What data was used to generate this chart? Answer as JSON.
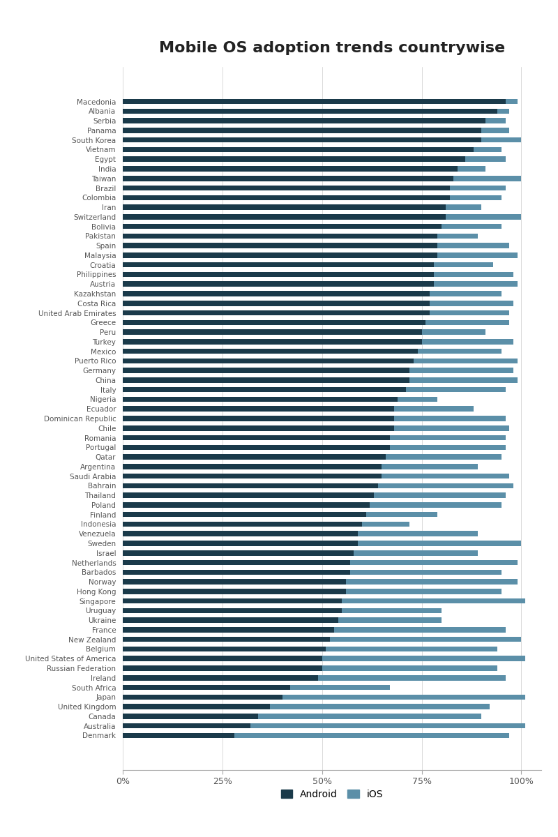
{
  "title": "Mobile OS adoption trends countrywise",
  "countries": [
    "Macedonia",
    "Albania",
    "Serbia",
    "Panama",
    "South Korea",
    "Vietnam",
    "Egypt",
    "India",
    "Taiwan",
    "Brazil",
    "Colombia",
    "Iran",
    "Switzerland",
    "Bolivia",
    "Pakistan",
    "Spain",
    "Malaysia",
    "Croatia",
    "Philippines",
    "Austria",
    "Kazakhstan",
    "Costa Rica",
    "United Arab Emirates",
    "Greece",
    "Peru",
    "Turkey",
    "Mexico",
    "Puerto Rico",
    "Germany",
    "China",
    "Italy",
    "Nigeria",
    "Ecuador",
    "Dominican Republic",
    "Chile",
    "Romania",
    "Portugal",
    "Qatar",
    "Argentina",
    "Saudi Arabia",
    "Bahrain",
    "Thailand",
    "Poland",
    "Finland",
    "Indonesia",
    "Venezuela",
    "Sweden",
    "Israel",
    "Netherlands",
    "Barbados",
    "Norway",
    "Hong Kong",
    "Singapore",
    "Uruguay",
    "Ukraine",
    "France",
    "New Zealand",
    "Belgium",
    "United States of America",
    "Russian Federation",
    "Ireland",
    "South Africa",
    "Japan",
    "United Kingdom",
    "Canada",
    "Australia",
    "Denmark"
  ],
  "android": [
    96,
    94,
    91,
    90,
    90,
    88,
    86,
    84,
    83,
    82,
    82,
    81,
    81,
    80,
    79,
    79,
    79,
    78,
    78,
    78,
    77,
    77,
    77,
    76,
    75,
    75,
    74,
    73,
    72,
    72,
    71,
    69,
    68,
    68,
    68,
    67,
    67,
    66,
    65,
    65,
    64,
    63,
    62,
    61,
    60,
    59,
    59,
    58,
    57,
    57,
    56,
    56,
    55,
    55,
    54,
    53,
    52,
    51,
    50,
    50,
    49,
    42,
    40,
    37,
    34,
    32,
    28
  ],
  "total": [
    99,
    97,
    96,
    97,
    100,
    95,
    96,
    91,
    100,
    96,
    95,
    90,
    100,
    95,
    89,
    97,
    99,
    93,
    98,
    99,
    95,
    98,
    97,
    97,
    91,
    98,
    95,
    99,
    98,
    99,
    96,
    79,
    88,
    96,
    97,
    96,
    96,
    95,
    89,
    97,
    98,
    96,
    95,
    79,
    72,
    89,
    100,
    89,
    99,
    95,
    99,
    95,
    101,
    80,
    80,
    96,
    100,
    94,
    101,
    94,
    96,
    67,
    101,
    92,
    90,
    101,
    97
  ],
  "android_color": "#1a3a4a",
  "ios_color": "#5b8fa8",
  "background_color": "#ffffff",
  "title_fontsize": 16,
  "label_fontsize": 7.5,
  "bar_height": 0.55
}
